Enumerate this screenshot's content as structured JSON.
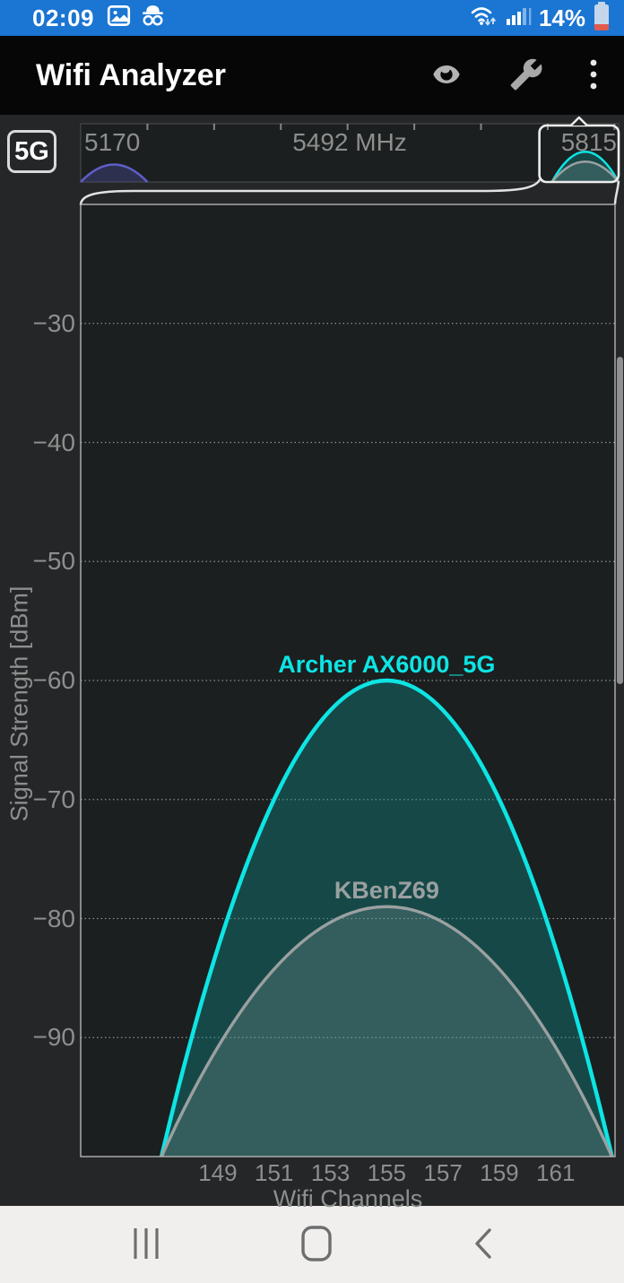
{
  "status_bar": {
    "time": "02:09",
    "battery_percent": "14%",
    "icons": [
      "image-icon",
      "incognito-icon",
      "wifi-icon",
      "signal-strength-icon",
      "battery-icon"
    ],
    "colors": {
      "background": "#1a75d3",
      "battery_low": "#e05a4e"
    }
  },
  "app_bar": {
    "title": "Wifi Analyzer",
    "actions": [
      {
        "name": "eye-icon"
      },
      {
        "name": "wrench-icon"
      },
      {
        "name": "overflow-menu-icon"
      }
    ],
    "colors": {
      "background": "#060607",
      "icon": "#b3b3b3"
    }
  },
  "band_selector": {
    "label": "5G"
  },
  "chart_data": [
    {
      "role": "main-channel-graph",
      "type": "area",
      "title": "",
      "xlabel": "Wifi Channels",
      "ylabel": "Signal Strength [dBm]",
      "xlim": [
        144.13,
        163.11
      ],
      "ylim": [
        -100,
        -20
      ],
      "x_ticks": [
        149,
        151,
        153,
        155,
        157,
        159,
        161
      ],
      "y_ticks": [
        -30,
        -40,
        -50,
        -60,
        -70,
        -80,
        -90
      ],
      "grid": "dotted-horizontal",
      "legend_position": "labels-above-peaks",
      "series": [
        {
          "name": "Archer AX6000_5G",
          "shape": "parabola",
          "center_channel": 155,
          "channel_span": [
            147,
            163
          ],
          "peak_dbm": -60,
          "base_dbm": -100,
          "line_color": "#0ee4e4",
          "fill_color": "rgba(14,150,150,0.35)"
        },
        {
          "name": "KBenZ69",
          "shape": "parabola",
          "center_channel": 155,
          "channel_span": [
            147,
            163
          ],
          "peak_dbm": -79,
          "base_dbm": -100,
          "line_color": "#9aa0a0",
          "fill_color": "rgba(160,170,168,0.22)"
        }
      ]
    },
    {
      "role": "band-overview-strip",
      "type": "area",
      "freq_labels": {
        "left": "5170",
        "center": "5492 MHz",
        "right": "5815"
      },
      "freq_range_mhz": [
        5170,
        5815
      ],
      "tick_every_mhz": 80,
      "selection_range_mhz": [
        5720,
        5815
      ],
      "series": [
        {
          "name": "",
          "center_mhz": 5210,
          "span_mhz": [
            5170,
            5250
          ],
          "height_frac": 0.3,
          "line_color": "#5d5fc9",
          "fill_color": "rgba(80,80,170,0.35)"
        },
        {
          "name": "Archer AX6000_5G",
          "center_mhz": 5775,
          "span_mhz": [
            5735,
            5815
          ],
          "height_frac": 0.52,
          "line_color": "#0ee4e4",
          "fill_color": "rgba(14,150,150,0.35)"
        },
        {
          "name": "KBenZ69",
          "center_mhz": 5775,
          "span_mhz": [
            5735,
            5815
          ],
          "height_frac": 0.35,
          "line_color": "#9aa0a0",
          "fill_color": "rgba(160,170,168,0.22)"
        }
      ]
    }
  ],
  "nav_bar": {
    "items": [
      {
        "name": "recents-button"
      },
      {
        "name": "home-button"
      },
      {
        "name": "back-button"
      }
    ]
  }
}
